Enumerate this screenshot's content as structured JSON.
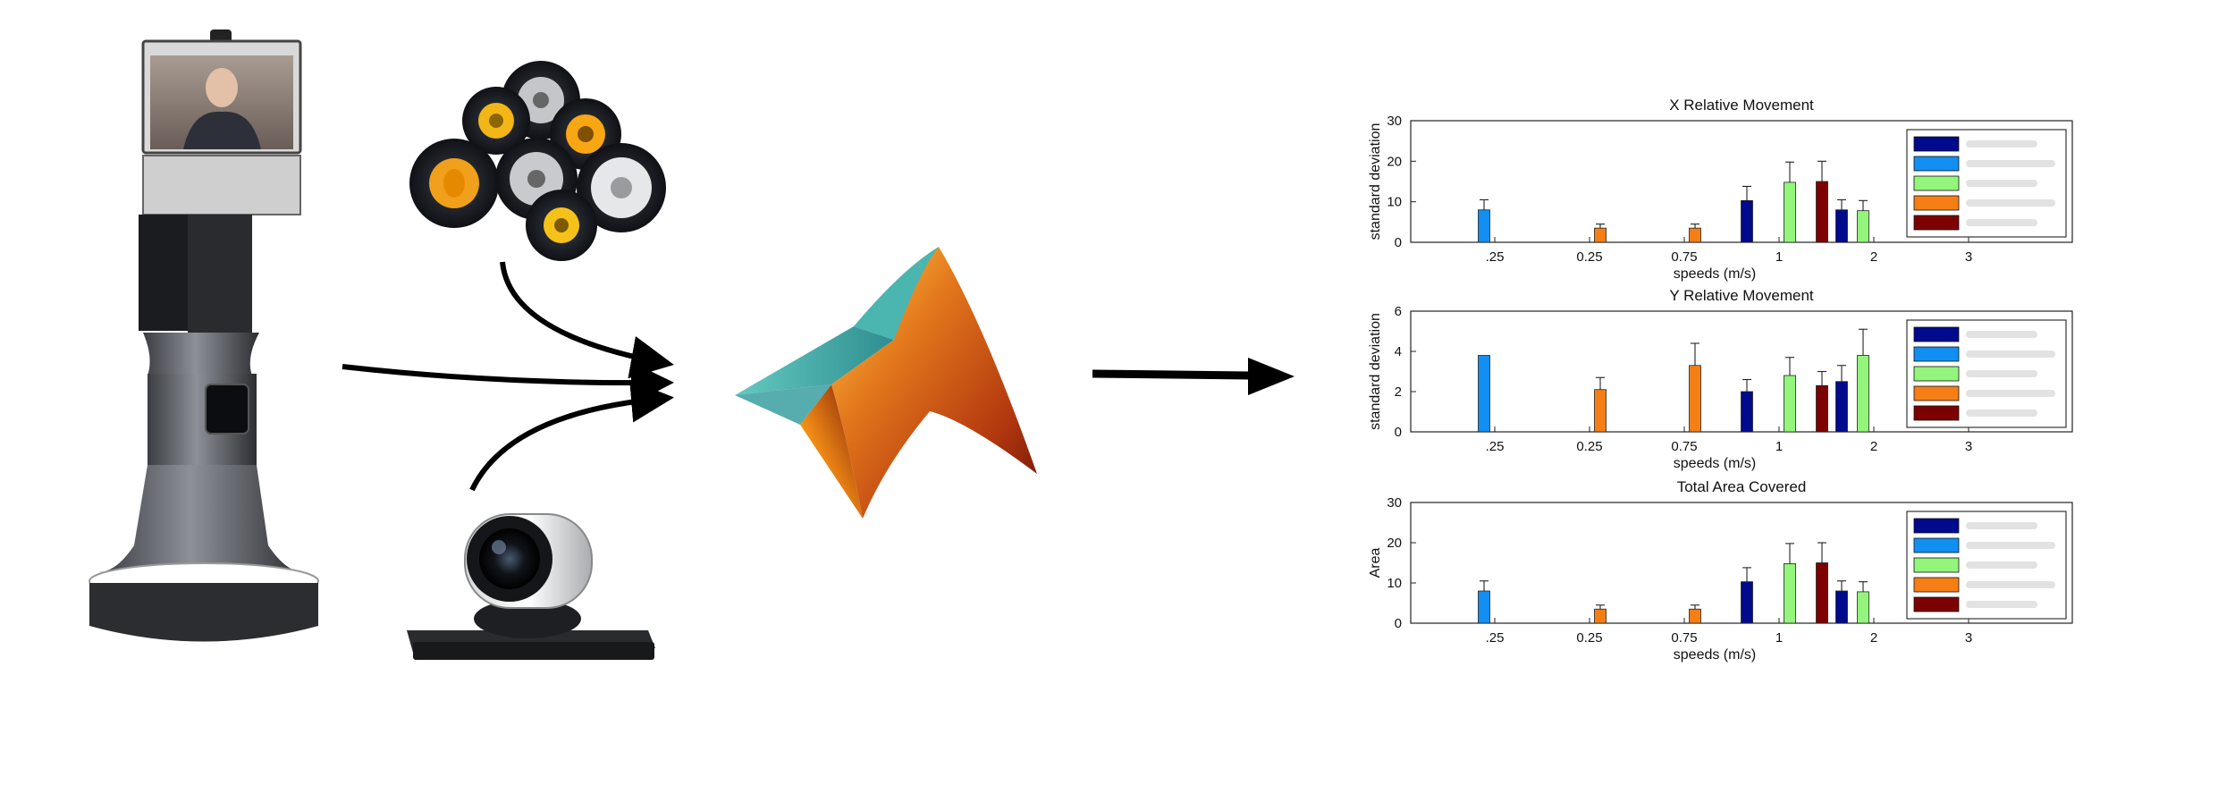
{
  "diagram": {
    "components": [
      "robot-image",
      "wheels-image",
      "camera-image",
      "matlab-logo",
      "output-charts"
    ]
  },
  "colors": {
    "series1": "#000a8c",
    "series2": "#118ff2",
    "series3": "#93f57c",
    "series4": "#f57f15",
    "series5": "#7d0000",
    "arrow": "#000000"
  },
  "chart_data": [
    {
      "type": "bar",
      "title": "X Relative Movement",
      "xlabel": "speeds (m/s)",
      "ylabel": "standard deviation",
      "ylim": [
        0,
        30
      ],
      "yticks": [
        0,
        10,
        20,
        30
      ],
      "xticks": [
        ".25",
        "0.25",
        "0.75",
        "1",
        "2",
        "3"
      ],
      "legend_placement": "top-right",
      "grid": false,
      "series": [
        {
          "values": [
            0,
            0,
            0,
            10.3,
            8.0,
            0
          ],
          "errors": [
            0,
            0,
            0,
            3.5,
            2.5,
            0
          ]
        },
        {
          "values": [
            8.0,
            0,
            0,
            0,
            0,
            0
          ],
          "errors": [
            2.5,
            0,
            0,
            0,
            0,
            0
          ]
        },
        {
          "values": [
            0,
            0,
            0,
            14.8,
            7.8,
            0
          ],
          "errors": [
            0,
            0,
            0,
            5.0,
            2.5,
            0
          ]
        },
        {
          "values": [
            0,
            3.5,
            3.5,
            0,
            0,
            0
          ],
          "errors": [
            0,
            1.0,
            1.0,
            0,
            0,
            0
          ]
        },
        {
          "values": [
            0,
            0,
            0,
            15.0,
            0,
            0
          ],
          "errors": [
            0,
            0,
            0,
            5.0,
            0,
            0
          ]
        }
      ]
    },
    {
      "type": "bar",
      "title": "Y Relative Movement",
      "xlabel": "speeds (m/s)",
      "ylabel": "standard deviation",
      "ylim": [
        0,
        6
      ],
      "yticks": [
        0,
        2,
        4,
        6
      ],
      "xticks": [
        ".25",
        "0.25",
        "0.75",
        "1",
        "2",
        "3"
      ],
      "legend_placement": "top-right",
      "grid": false,
      "series": [
        {
          "values": [
            0,
            0,
            0,
            2.0,
            2.5,
            0
          ],
          "errors": [
            0,
            0,
            0,
            0.6,
            0.8,
            0
          ]
        },
        {
          "values": [
            3.8,
            0,
            0,
            0,
            0,
            0
          ],
          "errors": [
            0,
            0,
            0,
            0,
            0,
            0
          ]
        },
        {
          "values": [
            0,
            0,
            0,
            2.8,
            3.8,
            0
          ],
          "errors": [
            0,
            0,
            0,
            0.9,
            1.3,
            0
          ]
        },
        {
          "values": [
            0,
            2.1,
            3.3,
            0,
            0,
            0
          ],
          "errors": [
            0,
            0.6,
            1.1,
            0,
            0,
            0
          ]
        },
        {
          "values": [
            0,
            0,
            0,
            2.3,
            0,
            0
          ],
          "errors": [
            0,
            0,
            0,
            0.7,
            0,
            0
          ]
        }
      ]
    },
    {
      "type": "bar",
      "title": "Total Area Covered",
      "xlabel": "speeds (m/s)",
      "ylabel": "Area",
      "ylim": [
        0,
        30
      ],
      "yticks": [
        0,
        10,
        20,
        30
      ],
      "xticks": [
        ".25",
        "0.25",
        "0.75",
        "1",
        "2",
        "3"
      ],
      "legend_placement": "top-right",
      "grid": false,
      "series": [
        {
          "values": [
            0,
            0,
            0,
            10.3,
            8.0,
            0
          ],
          "errors": [
            0,
            0,
            0,
            3.5,
            2.5,
            0
          ]
        },
        {
          "values": [
            8.0,
            0,
            0,
            0,
            0,
            0
          ],
          "errors": [
            2.5,
            0,
            0,
            0,
            0,
            0
          ]
        },
        {
          "values": [
            0,
            0,
            0,
            14.8,
            7.8,
            0
          ],
          "errors": [
            0,
            0,
            0,
            5.0,
            2.5,
            0
          ]
        },
        {
          "values": [
            0,
            3.5,
            3.5,
            0,
            0,
            0
          ],
          "errors": [
            0,
            1.0,
            1.0,
            0,
            0,
            0
          ]
        },
        {
          "values": [
            0,
            0,
            0,
            15.0,
            0,
            0
          ],
          "errors": [
            0,
            0,
            0,
            5.0,
            0,
            0
          ]
        }
      ]
    }
  ]
}
